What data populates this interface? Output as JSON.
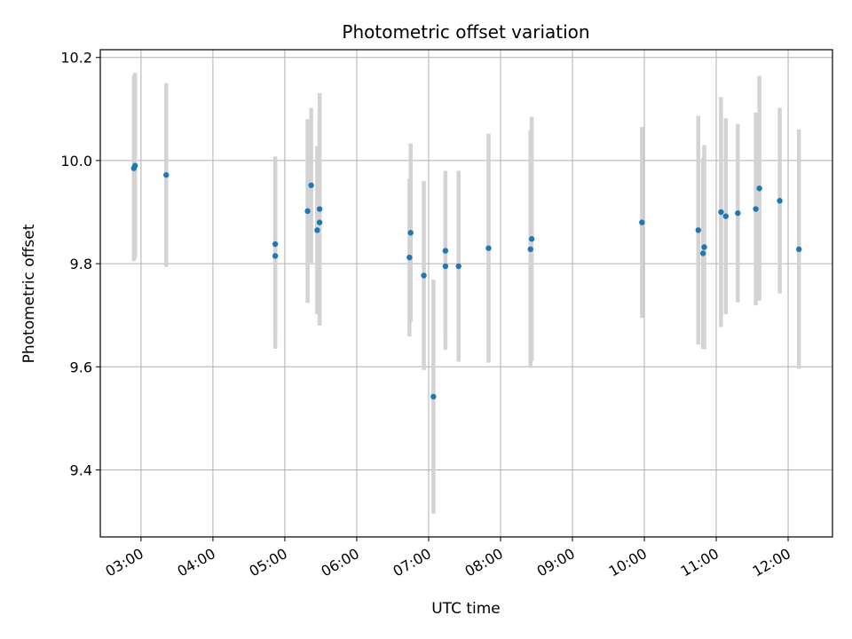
{
  "chart_data": {
    "type": "scatter",
    "title": "Photometric offset variation",
    "xlabel": "UTC time",
    "ylabel": "Photometric offset",
    "x_ticks": [
      "03:00",
      "04:00",
      "05:00",
      "06:00",
      "07:00",
      "08:00",
      "09:00",
      "10:00",
      "11:00",
      "12:00"
    ],
    "x_tick_values": [
      "03:00",
      "04:00",
      "05:00",
      "06:00",
      "07:00",
      "08:00",
      "09:00",
      "10:00",
      "11:00",
      "12:00"
    ],
    "y_ticks": [
      "9.4",
      "9.6",
      "9.8",
      "10.0",
      "10.2"
    ],
    "y_tick_values": [
      9.4,
      9.6,
      9.8,
      10.0,
      10.2
    ],
    "xlim": [
      "02:26",
      "12:37"
    ],
    "ylim": [
      9.27,
      10.215
    ],
    "grid": true,
    "colors": {
      "marker": "#1f77b4",
      "errorbar": "#d3d3d3",
      "grid": "#b0b0b0",
      "axes": "#000000"
    },
    "points": [
      {
        "x": "02:54",
        "y": 9.985,
        "err": 0.18
      },
      {
        "x": "02:55",
        "y": 9.99,
        "err": 0.18
      },
      {
        "x": "03:21",
        "y": 9.972,
        "err": 0.178
      },
      {
        "x": "04:52",
        "y": 9.838,
        "err": 0.17
      },
      {
        "x": "04:52",
        "y": 9.815,
        "err": 0.18
      },
      {
        "x": "05:19",
        "y": 9.902,
        "err": 0.178
      },
      {
        "x": "05:22",
        "y": 9.952,
        "err": 0.15
      },
      {
        "x": "05:27",
        "y": 9.865,
        "err": 0.163
      },
      {
        "x": "05:29",
        "y": 9.88,
        "err": 0.2
      },
      {
        "x": "05:29",
        "y": 9.906,
        "err": 0.225
      },
      {
        "x": "06:44",
        "y": 9.812,
        "err": 0.153
      },
      {
        "x": "06:45",
        "y": 9.86,
        "err": 0.173
      },
      {
        "x": "06:56",
        "y": 9.777,
        "err": 0.183
      },
      {
        "x": "07:04",
        "y": 9.542,
        "err": 0.227
      },
      {
        "x": "07:14",
        "y": 9.825,
        "err": 0.155
      },
      {
        "x": "07:14",
        "y": 9.795,
        "err": 0.162
      },
      {
        "x": "07:25",
        "y": 9.795,
        "err": 0.185
      },
      {
        "x": "07:50",
        "y": 9.83,
        "err": 0.222
      },
      {
        "x": "08:25",
        "y": 9.828,
        "err": 0.23
      },
      {
        "x": "08:26",
        "y": 9.848,
        "err": 0.237
      },
      {
        "x": "09:58",
        "y": 9.88,
        "err": 0.185
      },
      {
        "x": "10:45",
        "y": 9.865,
        "err": 0.222
      },
      {
        "x": "10:49",
        "y": 9.82,
        "err": 0.185
      },
      {
        "x": "10:50",
        "y": 9.832,
        "err": 0.198
      },
      {
        "x": "11:04",
        "y": 9.9,
        "err": 0.223
      },
      {
        "x": "11:08",
        "y": 9.892,
        "err": 0.19
      },
      {
        "x": "11:18",
        "y": 9.898,
        "err": 0.173
      },
      {
        "x": "11:33",
        "y": 9.906,
        "err": 0.187
      },
      {
        "x": "11:36",
        "y": 9.946,
        "err": 0.218
      },
      {
        "x": "11:53",
        "y": 9.922,
        "err": 0.18
      },
      {
        "x": "12:09",
        "y": 9.828,
        "err": 0.232
      }
    ]
  }
}
